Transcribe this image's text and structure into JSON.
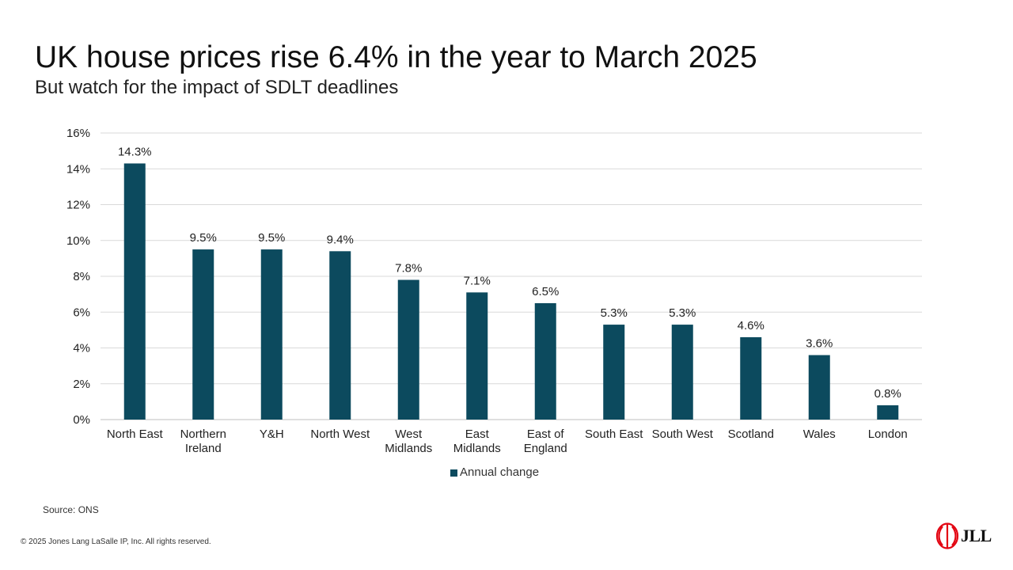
{
  "header": {
    "title": "UK house prices rise 6.4% in the year to March 2025",
    "subtitle": "But watch for the impact of SDLT deadlines"
  },
  "chart_data": {
    "type": "bar",
    "categories": [
      [
        "North East"
      ],
      [
        "Northern",
        "Ireland"
      ],
      [
        "Y&H"
      ],
      [
        "North West"
      ],
      [
        "West",
        "Midlands"
      ],
      [
        "East",
        "Midlands"
      ],
      [
        "East of",
        "England"
      ],
      [
        "South East"
      ],
      [
        "South West"
      ],
      [
        "Scotland"
      ],
      [
        "Wales"
      ],
      [
        "London"
      ]
    ],
    "series": [
      {
        "name": "Annual change",
        "values": [
          14.3,
          9.5,
          9.5,
          9.4,
          7.8,
          7.1,
          6.5,
          5.3,
          5.3,
          4.6,
          3.6,
          0.8
        ],
        "labels": [
          "14.3%",
          "9.5%",
          "9.5%",
          "9.4%",
          "7.8%",
          "7.1%",
          "6.5%",
          "5.3%",
          "5.3%",
          "4.6%",
          "3.6%",
          "0.8%"
        ]
      }
    ],
    "ylim": [
      0,
      16
    ],
    "yticks": [
      0,
      2,
      4,
      6,
      8,
      10,
      12,
      14,
      16
    ],
    "ytick_labels": [
      "0%",
      "2%",
      "4%",
      "6%",
      "8%",
      "10%",
      "12%",
      "14%",
      "16%"
    ],
    "grid": true,
    "legend": "bottom",
    "bar_color": "#0c4a5e"
  },
  "legend": {
    "label": "Annual change"
  },
  "footer": {
    "source": "Source: ONS",
    "copyright": "© 2025 Jones Lang LaSalle IP, Inc. All rights reserved.",
    "logo_text": "JLL",
    "logo_icon": "jll-logo-icon",
    "logo_color": "#e30613"
  }
}
